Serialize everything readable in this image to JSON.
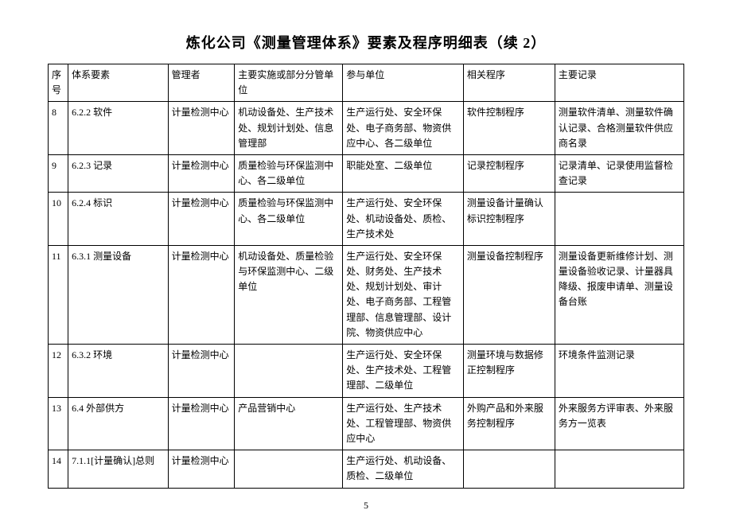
{
  "title": "炼化公司《测量管理体系》要素及程序明细表（续 2）",
  "pageNumber": "5",
  "columns": [
    "序号",
    "体系要素",
    "管理者",
    "主要实施或部分分管单位",
    "参与单位",
    "相关程序",
    "主要记录"
  ],
  "rows": [
    {
      "idx": "8",
      "elem": "6.2.2 软件",
      "mgr": "计量检测中心",
      "impl": "机动设备处、生产技术处、规划计划处、信息管理部",
      "part": "生产运行处、安全环保处、电子商务部、物资供应中心、各二级单位",
      "proc": "软件控制程序",
      "rec": "测量软件清单、测量软件确认记录、合格测量软件供应商名录"
    },
    {
      "idx": "9",
      "elem": "6.2.3 记录",
      "mgr": "计量检测中心",
      "impl": "质量检验与环保监测中心、各二级单位",
      "part": "职能处室、二级单位",
      "proc": "记录控制程序",
      "rec": "记录清单、记录使用监督检查记录"
    },
    {
      "idx": "10",
      "elem": "6.2.4 标识",
      "mgr": "计量检测中心",
      "impl": "质量检验与环保监测中心、各二级单位",
      "part": "生产运行处、安全环保处、机动设备处、质检、生产技术处",
      "proc": "测量设备计量确认标识控制程序",
      "rec": ""
    },
    {
      "idx": "11",
      "elem": "6.3.1 测量设备",
      "mgr": "计量检测中心",
      "impl": "机动设备处、质量检验与环保监测中心、二级单位",
      "part": "生产运行处、安全环保处、财务处、生产技术处、规划计划处、审计处、电子商务部、工程管理部、信息管理部、设计院、物资供应中心",
      "proc": "测量设备控制程序",
      "rec": "测量设备更新维修计划、测量设备验收记录、计量器具降级、报废申请单、测量设备台账"
    },
    {
      "idx": "12",
      "elem": "6.3.2 环境",
      "mgr": "计量检测中心",
      "impl": "",
      "part": "生产运行处、安全环保处、生产技术处、工程管理部、二级单位",
      "proc": "测量环境与数据修正控制程序",
      "rec": "环境条件监测记录"
    },
    {
      "idx": "13",
      "elem": "6.4 外部供方",
      "mgr": "计量检测中心",
      "impl": "产品营销中心",
      "part": "生产运行处、生产技术处、工程管理部、物资供应中心",
      "proc": "外购产品和外来服务控制程序",
      "rec": "外来服务方评审表、外来服务方一览表"
    },
    {
      "idx": "14",
      "elem": "7.1.1[计量确认]总则",
      "mgr": "计量检测中心",
      "impl": "",
      "part": "生产运行处、机动设备、质检、二级单位",
      "proc": "",
      "rec": ""
    }
  ]
}
